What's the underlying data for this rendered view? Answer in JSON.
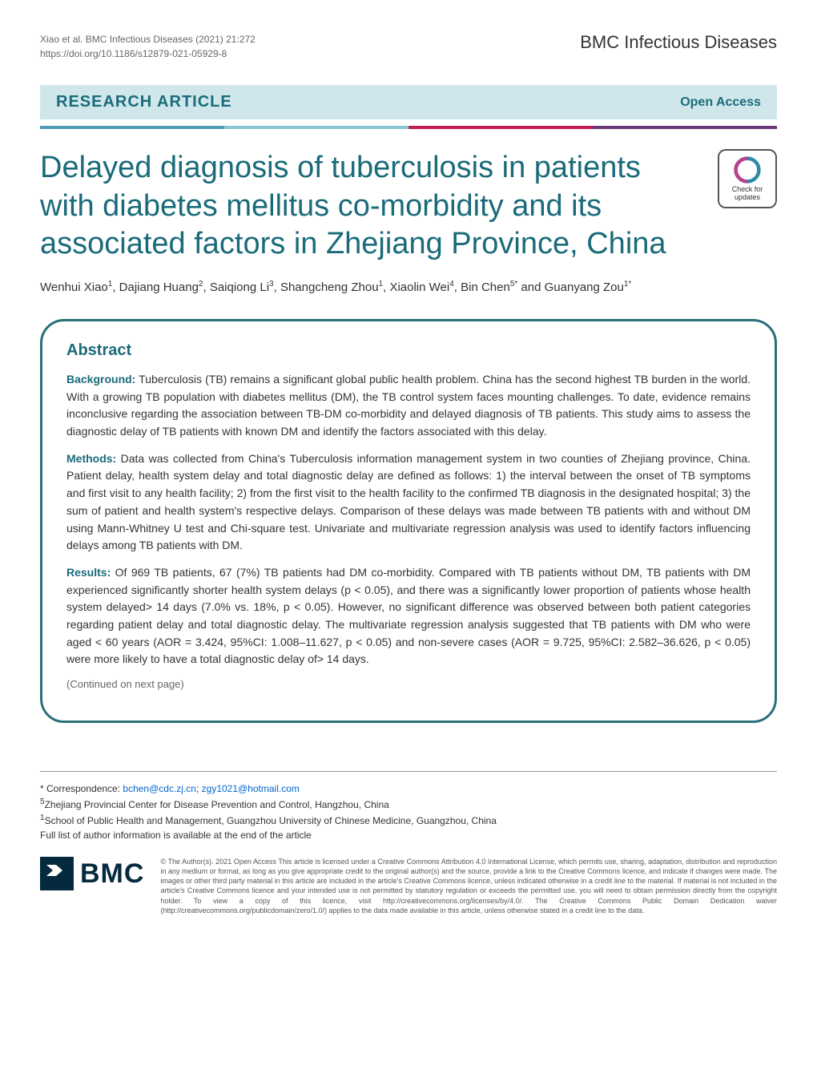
{
  "citation": {
    "authors_line": "Xiao et al. BMC Infectious Diseases",
    "year_vol": "(2021) 21:272",
    "doi": "https://doi.org/10.1186/s12879-021-05929-8"
  },
  "journal": "BMC Infectious Diseases",
  "article_type": "RESEARCH ARTICLE",
  "open_access": "Open Access",
  "title": "Delayed diagnosis of tuberculosis in patients with diabetes mellitus co-morbidity and its associated factors in Zhejiang Province, China",
  "check_badge": {
    "line1": "Check for",
    "line2": "updates"
  },
  "authors_html": "Wenhui Xiao<sup>1</sup>, Dajiang Huang<sup>2</sup>, Saiqiong Li<sup>3</sup>, Shangcheng Zhou<sup>1</sup>, Xiaolin Wei<sup>4</sup>, Bin Chen<sup>5*</sup> and Guanyang Zou<sup>1*</sup>",
  "abstract": {
    "heading": "Abstract",
    "background_label": "Background:",
    "background_text": " Tuberculosis (TB) remains a significant global public health problem. China has the second highest TB burden in the world. With a growing TB population with diabetes mellitus (DM), the TB control system faces mounting challenges. To date, evidence remains inconclusive regarding the association between TB-DM co-morbidity and delayed diagnosis of TB patients. This study aims to assess the diagnostic delay of TB patients with known DM and identify the factors associated with this delay.",
    "methods_label": "Methods:",
    "methods_text": " Data was collected from China's Tuberculosis information management system in two counties of Zhejiang province, China. Patient delay, health system delay and total diagnostic delay are defined as follows: 1) the interval between the onset of TB symptoms and first visit to any health facility; 2) from the first visit to the health facility to the confirmed TB diagnosis in the designated hospital; 3) the sum of patient and health system's respective delays. Comparison of these delays was made between TB patients with and without DM using Mann-Whitney U test and Chi-square test. Univariate and multivariate regression analysis was used to identify factors influencing delays among TB patients with DM.",
    "results_label": "Results:",
    "results_text": " Of 969 TB patients, 67 (7%) TB patients had DM co-morbidity. Compared with TB patients without DM, TB patients with DM experienced significantly shorter health system delays (p < 0.05), and there was a significantly lower proportion of patients whose health system delayed> 14 days (7.0% vs. 18%, p < 0.05). However, no significant difference was observed between both patient categories regarding patient delay and total diagnostic delay. The multivariate regression analysis suggested that TB patients with DM who were aged < 60 years (AOR = 3.424, 95%CI: 1.008–11.627, p < 0.05) and non-severe cases (AOR = 9.725, 95%CI: 2.582–36.626, p < 0.05) were more likely to have a total diagnostic delay of> 14 days.",
    "continued": "(Continued on next page)"
  },
  "correspondence": {
    "label": "* Correspondence:",
    "email1": "bchen@cdc.zj.cn",
    "email2": "zgy1021@hotmail.com",
    "affil5": "Zhejiang Provincial Center for Disease Prevention and Control, Hangzhou, China",
    "affil1": "School of Public Health and Management, Guangzhou University of Chinese Medicine, Guangzhou, China",
    "full_list_note": "Full list of author information is available at the end of the article"
  },
  "bmc": "BMC",
  "license": "© The Author(s). 2021 Open Access This article is licensed under a Creative Commons Attribution 4.0 International License, which permits use, sharing, adaptation, distribution and reproduction in any medium or format, as long as you give appropriate credit to the original author(s) and the source, provide a link to the Creative Commons licence, and indicate if changes were made. The images or other third party material in this article are included in the article's Creative Commons licence, unless indicated otherwise in a credit line to the material. If material is not included in the article's Creative Commons licence and your intended use is not permitted by statutory regulation or exceeds the permitted use, you will need to obtain permission directly from the copyright holder. To view a copy of this licence, visit http://creativecommons.org/licenses/by/4.0/. The Creative Commons Public Domain Dedication waiver (http://creativecommons.org/publicdomain/zero/1.0/) applies to the data made available in this article, unless otherwise stated in a credit line to the data.",
  "colors": {
    "teal": "#1a6b7a",
    "box_border": "#2a6f7a",
    "bar_bg": "#cfe7eb"
  }
}
